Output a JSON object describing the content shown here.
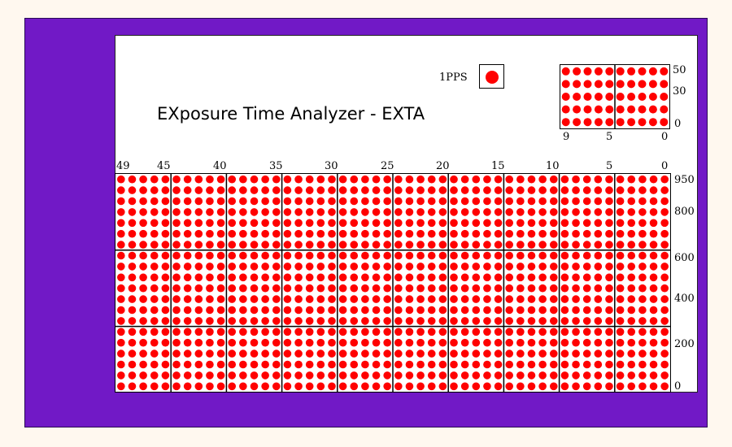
{
  "title": "EXposure Time Analyzer - EXTA",
  "pps": {
    "label": "1PPS",
    "state": "on",
    "color": "#ff0000"
  },
  "colors": {
    "frame": "#7119c6",
    "panel": "#ffffff",
    "led_on": "#ff0000",
    "page_background": "#fff8ef"
  },
  "small_grid": {
    "x_ticks": [
      "9",
      "5",
      "0"
    ],
    "y_ticks": [
      "50",
      "30",
      "0"
    ],
    "columns": 10,
    "rows": 5,
    "led_state": "all-on"
  },
  "main_grid": {
    "x_ticks": [
      "49",
      "45",
      "40",
      "35",
      "30",
      "25",
      "20",
      "15",
      "10",
      "5",
      "0"
    ],
    "y_ticks": [
      "950",
      "800",
      "600",
      "400",
      "200",
      "0"
    ],
    "columns": 50,
    "rows": 20,
    "led_state": "all-on"
  }
}
